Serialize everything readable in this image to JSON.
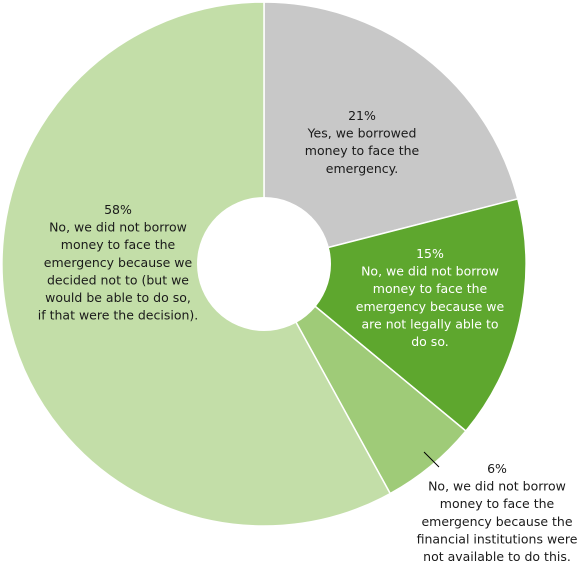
{
  "chart_data": {
    "type": "pie",
    "title": "",
    "slices": [
      {
        "value": 21,
        "pct_label": "21%",
        "lines": [
          "Yes, we borrowed",
          "money to face the",
          "emergency."
        ],
        "color": "#c8c8c8",
        "label_color": "#1a1a1a"
      },
      {
        "value": 15,
        "pct_label": "15%",
        "lines": [
          "No, we did not borrow",
          "money to face the",
          "emergency because we",
          "are not legally able to",
          "do so."
        ],
        "color": "#5ea72e",
        "label_color": "#ffffff"
      },
      {
        "value": 6,
        "pct_label": "6%",
        "lines": [
          "No, we did not borrow",
          "money to face the",
          "emergency because the",
          "financial institutions were",
          "not available to do this."
        ],
        "color": "#9fcb78",
        "label_color": "#1a1a1a"
      },
      {
        "value": 58,
        "pct_label": "58%",
        "lines": [
          "No, we did not borrow",
          "money to face the",
          "emergency because we",
          "decided not to (but we",
          "would be able to do so,",
          "if that were the decision)."
        ],
        "color": "#c3dea8",
        "label_color": "#1a1a1a"
      }
    ]
  }
}
